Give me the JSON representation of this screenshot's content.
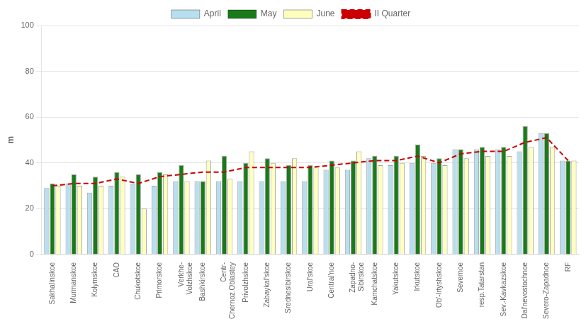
{
  "chart_data": {
    "type": "bar",
    "categories": [
      "Sakhalinskoe",
      "Murmanskoe",
      "Kolymskoe",
      "CAO",
      "Chukotskoe",
      "Primorskoe",
      "Verkhe-\nVolzhskoe",
      "Bashkirskoe",
      "Centr-\nChernoz.Oblastey",
      "Privolzhskoe",
      "Zabaykal'skoe",
      "Srednesibirskoe",
      "Ural'skoe",
      "Central'noe",
      "Zapadno-\nSibirskoe",
      "Kamchatskoe",
      "Yakutskoe",
      "Irkutskoe",
      "Ob'-Irtyshskoe",
      "Severnoe",
      "resp.Tatarstan",
      "Sev.-Kavkazskoe",
      "Dal'nevostochnoe",
      "Severo-Zapadnoe",
      "RF"
    ],
    "series": [
      {
        "name": "April",
        "color": "#b8dff0",
        "values": [
          29,
          31,
          27,
          30,
          31,
          30,
          32,
          32,
          32,
          32,
          32,
          32,
          32,
          37,
          37,
          42,
          39,
          40,
          40,
          46,
          46,
          46,
          45,
          53,
          41
        ]
      },
      {
        "name": "May",
        "color": "#1a7a1a",
        "values": [
          31,
          35,
          34,
          36,
          35,
          36,
          39,
          32,
          43,
          40,
          42,
          39,
          39,
          41,
          41,
          43,
          43,
          48,
          42,
          46,
          47,
          47,
          56,
          53,
          41
        ]
      },
      {
        "name": "June",
        "color": "#ffffc0",
        "values": [
          30,
          30,
          30,
          34,
          20,
          35,
          32,
          41,
          33,
          45,
          40,
          42,
          38,
          38,
          45,
          39,
          40,
          43,
          39,
          42,
          43,
          43,
          47,
          47,
          41
        ]
      },
      {
        "name": "II Quarter",
        "type": "line",
        "line_style": "dashed",
        "color": "#cc0000",
        "values": [
          30,
          31,
          31,
          33,
          31,
          34,
          35,
          36,
          36,
          38,
          38,
          38,
          38,
          39,
          40,
          41,
          41,
          43,
          40,
          44,
          45,
          45,
          49,
          51,
          41
        ]
      }
    ],
    "ylabel": "m",
    "ylim": [
      0,
      100
    ],
    "yticks": [
      0,
      20,
      40,
      60,
      80,
      100
    ],
    "grid": "y",
    "legend": "top"
  }
}
